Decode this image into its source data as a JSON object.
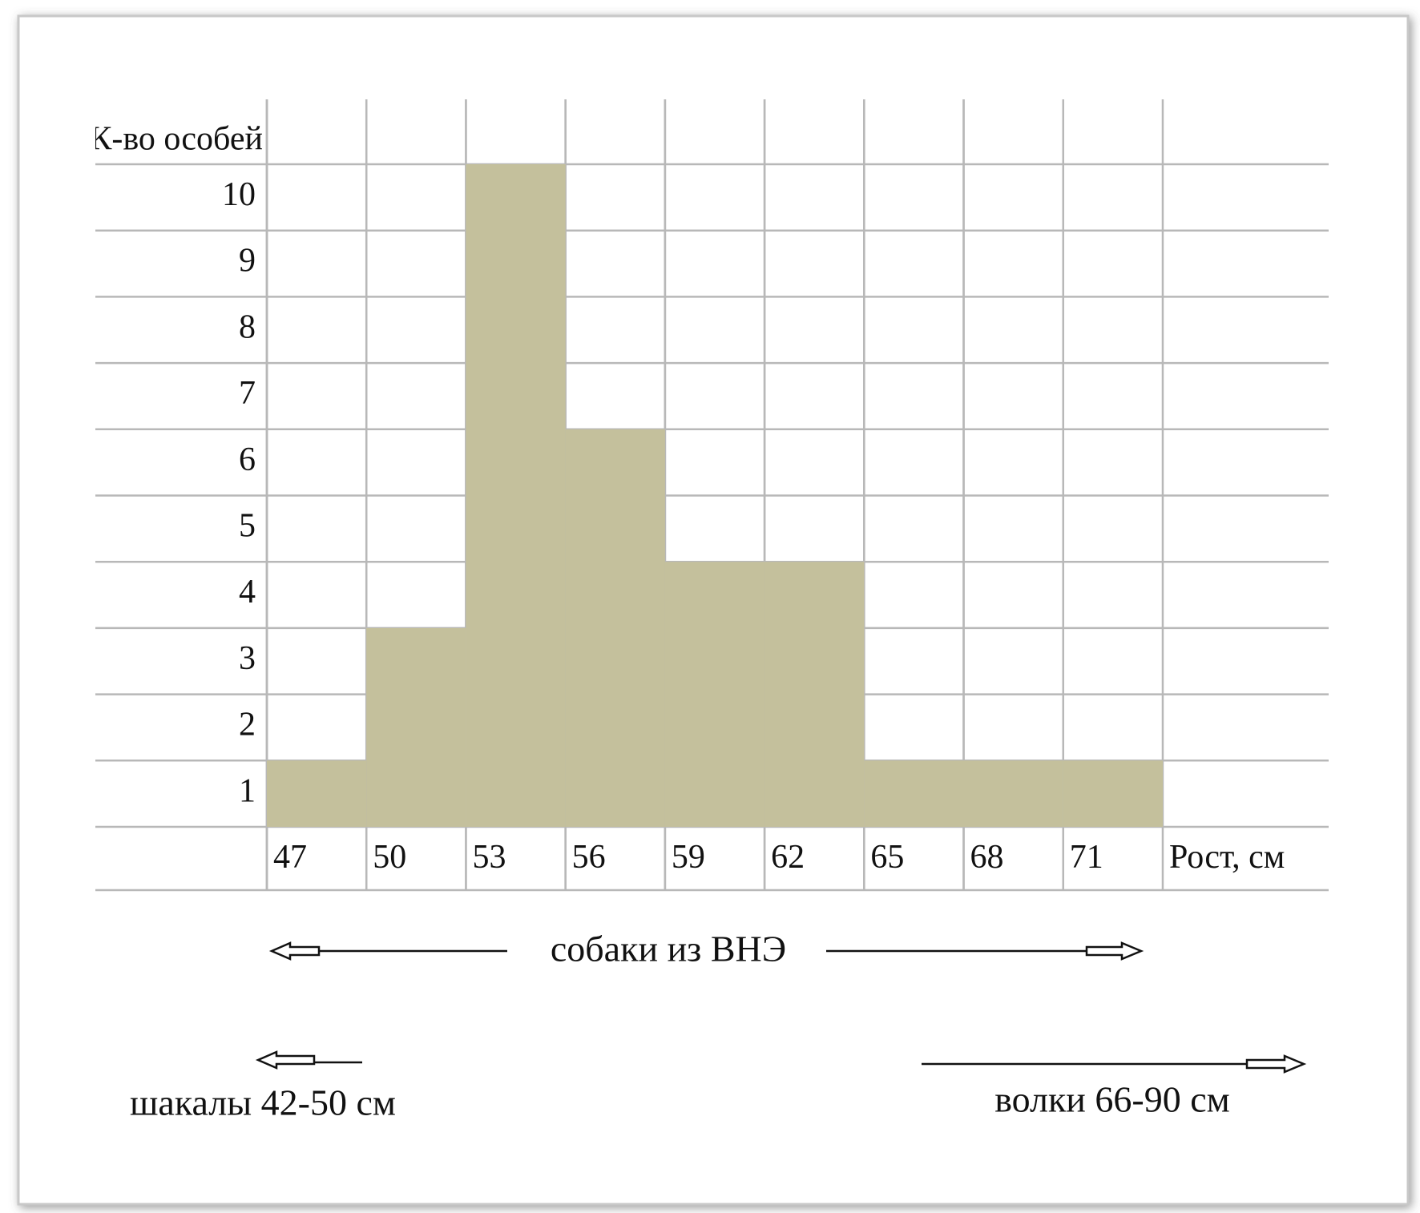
{
  "chart_data": {
    "type": "histogram",
    "y_label": "К-во особей",
    "x_label": "Рост, см",
    "bins": [
      47,
      50,
      53,
      56,
      59,
      62,
      65,
      68,
      71,
      74
    ],
    "values": [
      1,
      3,
      10,
      6,
      4,
      4,
      1,
      1,
      1
    ],
    "color": "#c4c09c",
    "xlim": [
      47,
      79
    ],
    "xticks": [
      47,
      50,
      53,
      56,
      59,
      62,
      65,
      68,
      71
    ],
    "ylim": [
      0,
      10
    ],
    "yticks": [
      1,
      2,
      3,
      4,
      5,
      6,
      7,
      8,
      9,
      10
    ],
    "grid": true,
    "annotations": [
      "собаки из ВНЭ",
      "шакалы 42-50 см",
      "волки 66-90 см"
    ]
  }
}
